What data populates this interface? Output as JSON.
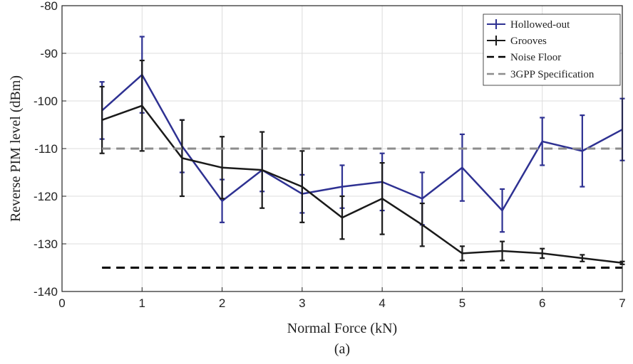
{
  "caption": "(a)",
  "chart_data": {
    "type": "line",
    "title": "",
    "xlabel": "Normal Force (kN)",
    "ylabel": "Reverse PIM level (dBm)",
    "xlim": [
      0,
      7
    ],
    "ylim": [
      -140,
      -80
    ],
    "xticks": [
      0,
      1,
      2,
      3,
      4,
      5,
      6,
      7
    ],
    "yticks": [
      -140,
      -130,
      -120,
      -110,
      -100,
      -90,
      -80
    ],
    "grid": true,
    "legend_position": "top-right",
    "series": [
      {
        "name": "Hollowed-out",
        "color": "#2e3192",
        "style": "solid",
        "x": [
          0.5,
          1,
          1.5,
          2,
          2.5,
          3,
          3.5,
          4,
          4.5,
          5,
          5.5,
          6,
          6.5,
          7
        ],
        "y": [
          -102,
          -94.5,
          -109.5,
          -121,
          -114.5,
          -119.5,
          -118,
          -117,
          -120.5,
          -114,
          -123,
          -108.5,
          -110.5,
          -106
        ],
        "err": [
          6,
          8,
          5.5,
          4.5,
          4.5,
          4,
          4.5,
          6,
          5.5,
          7,
          4.5,
          5,
          7.5,
          6.5
        ]
      },
      {
        "name": "Grooves",
        "color": "#1a1a1a",
        "style": "solid",
        "x": [
          0.5,
          1,
          1.5,
          2,
          2.5,
          3,
          3.5,
          4,
          4.5,
          5,
          5.5,
          6,
          6.5,
          7
        ],
        "y": [
          -104,
          -101,
          -112,
          -114,
          -114.5,
          -118,
          -124.5,
          -120.5,
          -126,
          -132,
          -131.5,
          -132,
          -133,
          -134
        ],
        "err": [
          7,
          9.5,
          8,
          6.5,
          8,
          7.5,
          4.5,
          7.5,
          4.5,
          1.5,
          2,
          1,
          0.7,
          0.3
        ]
      },
      {
        "name": "Noise Floor",
        "color": "#000000",
        "style": "dashed",
        "x": [
          0.5,
          7
        ],
        "y": [
          -135,
          -135
        ]
      },
      {
        "name": "3GPP Specification",
        "color": "#8c8c8c",
        "style": "dashed",
        "x": [
          0.5,
          7
        ],
        "y": [
          -110,
          -110
        ]
      }
    ]
  }
}
